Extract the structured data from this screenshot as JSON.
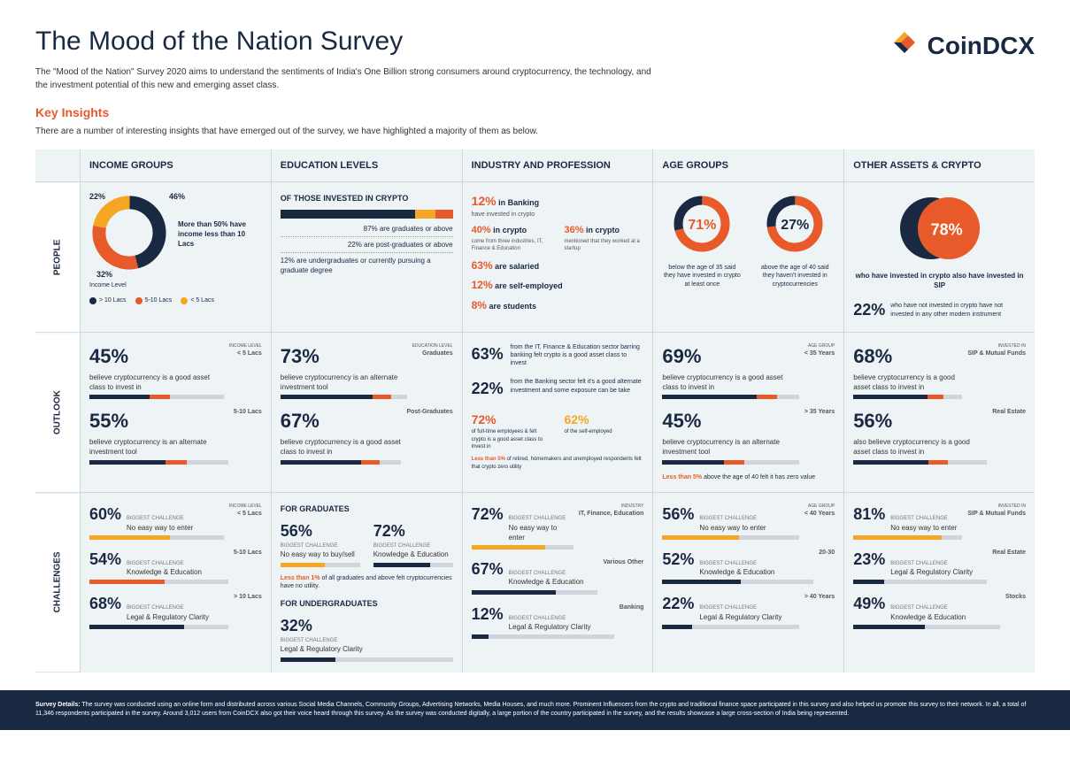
{
  "header": {
    "title": "The Mood of the Nation Survey",
    "subtitle": "The \"Mood of the Nation\" Survey 2020 aims to understand the sentiments of India's One Billion strong consumers around cryptocurrency, the technology, and the investment potential of this new and emerging asset class.",
    "keyInsights": "Key Insights",
    "insightsText": "There are a number of interesting insights that have emerged out of the survey, we have highlighted a majority of them as below.",
    "logoText": "CoinDCX"
  },
  "columns": [
    "INCOME GROUPS",
    "EDUCATION LEVELS",
    "INDUSTRY AND PROFESSION",
    "AGE GROUPS",
    "OTHER ASSETS & CRYPTO"
  ],
  "rows": [
    "PEOPLE",
    "OUTLOOK",
    "CHALLENGES"
  ],
  "people": {
    "income": {
      "donut": {
        "segments": [
          {
            "value": 46,
            "color": "#1a2942",
            "label": "46%"
          },
          {
            "value": 32,
            "color": "#e85a2a",
            "label": "32%"
          },
          {
            "value": 22,
            "color": "#f5a623",
            "label": "22%"
          }
        ]
      },
      "pct1": "22%",
      "pct2": "46%",
      "pct3": "32%",
      "caption": "More than 50% have income less than 10 Lacs",
      "legendTitle": "Income Level",
      "legend": [
        {
          "color": "#1a2942",
          "label": "> 10 Lacs"
        },
        {
          "color": "#e85a2a",
          "label": "5-10 Lacs"
        },
        {
          "color": "#f5a623",
          "label": "< 5 Lacs"
        }
      ]
    },
    "education": {
      "heading": "OF THOSE INVESTED IN CRYPTO",
      "bars": [
        {
          "width": 78,
          "color": "#1a2942"
        },
        {
          "width": 12,
          "color": "#f5a623"
        },
        {
          "width": 10,
          "color": "#e85a2a"
        }
      ],
      "lines": [
        "87% are graduates or above",
        "22% are post-graduates or above",
        "12% are undergraduates or currently pursuing a graduate degree"
      ]
    },
    "industry": {
      "l1": {
        "num": "12%",
        "txt": "in Banking",
        "sub": "have invested in crypto"
      },
      "l2a": {
        "num": "40%",
        "txt": "in crypto",
        "sub": "come from three industries, IT, Finance & Education"
      },
      "l2b": {
        "num": "36%",
        "txt": "in crypto",
        "sub": "mentioned that they worked at a startup"
      },
      "l3": {
        "num": "63%",
        "txt": "are salaried"
      },
      "l4": {
        "num": "12%",
        "txt": "are self-employed"
      },
      "l5": {
        "num": "8%",
        "txt": "are students"
      }
    },
    "age": {
      "c1": {
        "pct": "71%",
        "color": "#e85a2a",
        "txt": "below the age of 35 said they have invested in crypto at least once",
        "ring": 0.71
      },
      "c2": {
        "pct": "27%",
        "color": "#1a2942",
        "txt": "above the age of 40 said they haven't invested in cryptocurrencies",
        "ring": 0.27
      }
    },
    "assets": {
      "big": {
        "pct": "78%",
        "txt": "who have invested in crypto also have invested in SIP",
        "color": "#e85a2a"
      },
      "small": {
        "pct": "22%",
        "txt": "who have not invested in crypto have not invested in any other modern instrument"
      }
    }
  },
  "outlook": {
    "income": [
      {
        "pct": "45%",
        "txt": "believe cryptocurrency is a good asset class to invest in",
        "tag": "INCOME LEVEL",
        "tag2": "< 5 Lacs",
        "fill": 45
      },
      {
        "pct": "55%",
        "txt": "believe cryptocurrency is an alternate investment tool",
        "tag2": "5-10 Lacs",
        "fill": 55
      }
    ],
    "education": [
      {
        "pct": "73%",
        "txt": "believe cryptocurrency is an alternate investment tool",
        "tag": "EDUCATION LEVEL",
        "tag2": "Graduates",
        "fill": 73
      },
      {
        "pct": "67%",
        "txt": "believe cryptocurrency is a good asset class to invest in",
        "tag2": "Post-Graduates",
        "fill": 67
      }
    ],
    "industry": {
      "r1": {
        "pct": "63%",
        "txt": "from the IT, Finance & Education sector barring banking felt crypto is a good asset class to invest"
      },
      "r2": {
        "pct": "22%",
        "txt": "from the Banking sector felt it's a good alternate investment and some exposure can be take"
      },
      "r3a": {
        "pct": "72%",
        "txt": "of full-time employees & felt crypto is a good asset class to invest in"
      },
      "r3b": {
        "pct": "62%",
        "txt": "of the self-employed"
      },
      "r4": "Less than 5% of retired, homemakers and unemployed respondents felt that crypto zero utility"
    },
    "age": [
      {
        "pct": "69%",
        "txt": "believe cryptocurrency is a good asset class to invest in",
        "tag": "AGE GROUP",
        "tag2": "< 35 Years",
        "fill": 69
      },
      {
        "pct": "45%",
        "txt": "believe cryptocurrency is an alternate investment tool",
        "tag2": "> 35 Years",
        "fill": 45
      }
    ],
    "ageNote": "Less than 5% above the age of 40 felt it has zero value",
    "assets": [
      {
        "pct": "68%",
        "txt": "believe cryptocurrency is a good asset class to invest in",
        "tag": "INVESTED IN",
        "tag2": "SIP & Mutual Funds",
        "fill": 68
      },
      {
        "pct": "56%",
        "txt": "also believe cryptocurrency is a good asset class to invest in",
        "tag2": "Real Estate",
        "fill": 56
      }
    ]
  },
  "challenges": {
    "income": [
      {
        "pct": "60%",
        "bc": "No easy way to enter",
        "tag": "INCOME LEVEL",
        "tag2": "< 5 Lacs",
        "fill": 60,
        "color": "#f5a623"
      },
      {
        "pct": "54%",
        "bc": "Knowledge & Education",
        "tag2": "5-10 Lacs",
        "fill": 54,
        "color": "#e85a2a"
      },
      {
        "pct": "68%",
        "bc": "Legal & Regulatory Clarity",
        "tag2": "> 10 Lacs",
        "fill": 68,
        "color": "#1a2942"
      }
    ],
    "education": {
      "h1": "FOR GRADUATES",
      "g": [
        {
          "pct": "56%",
          "bc": "No easy way to buy/sell",
          "fill": 56,
          "color": "#f5a623"
        },
        {
          "pct": "72%",
          "bc": "Knowledge & Education",
          "fill": 72,
          "color": "#1a2942"
        }
      ],
      "note": "Less than 1% of all graduates and above felt cryptocurrencies have no utility.",
      "h2": "FOR UNDERGRADUATES",
      "u": {
        "pct": "32%",
        "bc": "Legal & Regulatory Clarity",
        "fill": 32,
        "color": "#1a2942"
      }
    },
    "industry": [
      {
        "pct": "72%",
        "bc": "No easy way to enter",
        "tag": "INDUSTRY",
        "tag2": "IT, Finance, Education",
        "fill": 72,
        "color": "#f5a623"
      },
      {
        "pct": "67%",
        "bc": "Knowledge & Education",
        "tag2": "Various Other",
        "fill": 67,
        "color": "#1a2942"
      },
      {
        "pct": "12%",
        "bc": "Legal & Regulatory Clarity",
        "tag2": "Banking",
        "fill": 12,
        "color": "#1a2942"
      }
    ],
    "age": [
      {
        "pct": "56%",
        "bc": "No easy way to enter",
        "tag": "AGE GROUP",
        "tag2": "< 40 Years",
        "fill": 56,
        "color": "#f5a623"
      },
      {
        "pct": "52%",
        "bc": "Knowledge & Education",
        "tag2": "20-30",
        "fill": 52,
        "color": "#1a2942"
      },
      {
        "pct": "22%",
        "bc": "Legal & Regulatory Clarity",
        "tag2": "> 40 Years",
        "fill": 22,
        "color": "#1a2942"
      }
    ],
    "assets": [
      {
        "pct": "81%",
        "bc": "No easy way to enter",
        "tag": "INVESTED IN",
        "tag2": "SIP & Mutual Funds",
        "fill": 81,
        "color": "#f5a623"
      },
      {
        "pct": "23%",
        "bc": "Legal & Regulatory Clarity",
        "tag2": "Real Estate",
        "fill": 23,
        "color": "#1a2942"
      },
      {
        "pct": "49%",
        "bc": "Knowledge & Education",
        "tag2": "Stocks",
        "fill": 49,
        "color": "#1a2942"
      }
    ]
  },
  "labels": {
    "biggestChallenge": "BIGGEST CHALLENGE",
    "noteRed": "Less than 5%",
    "noteRed2": "Less than 1%"
  },
  "footer": {
    "lead": "Survey Details:",
    "text": "The survey was conducted using an online form and distributed across various Social Media Channels, Community Groups, Advertising Networks, Media Houses, and much more. Prominent Influencers from the crypto and traditional finance space participated in this survey and also helped us promote this survey to their network. In all, a total of 11,346 respondents participated in the survey. Around 3,012 users from CoinDCX also got their voice heard through this survey. As the survey was conducted digitally, a large portion of the country participated in the survey, and the results showcase a large cross-section of India being represented."
  }
}
